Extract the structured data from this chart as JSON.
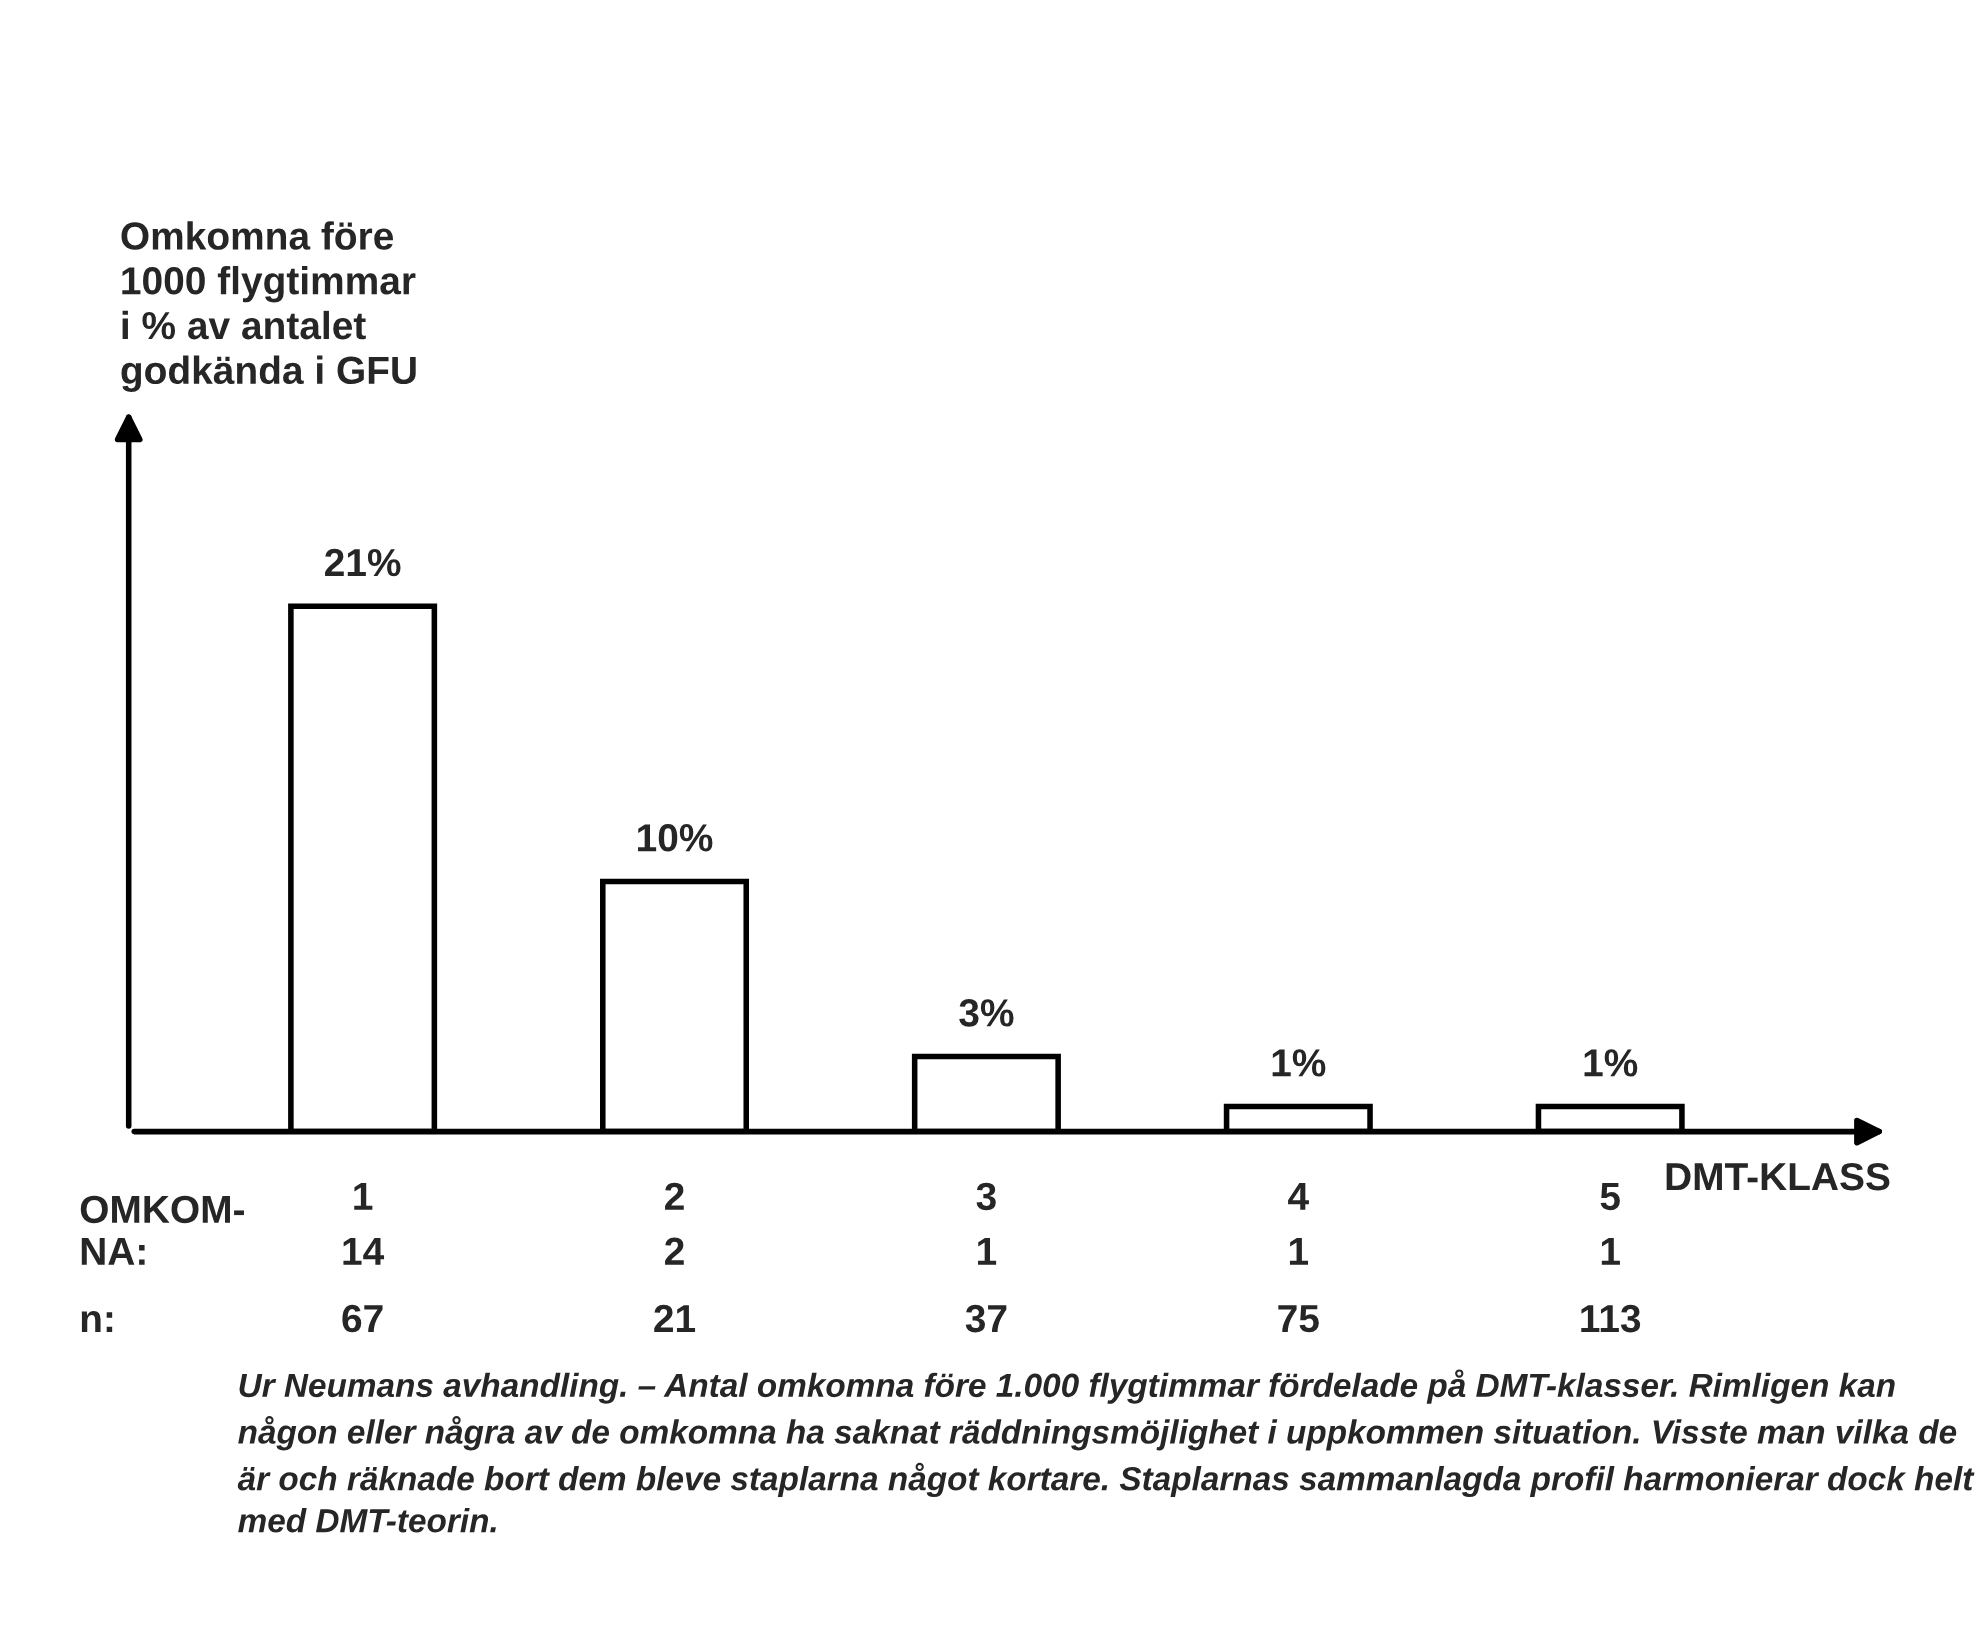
{
  "chart_data": {
    "type": "bar",
    "xlabel": "DMT-KLASS",
    "categories": [
      "1",
      "2",
      "3",
      "4",
      "5"
    ],
    "values": [
      21,
      10,
      3,
      1,
      1
    ],
    "value_labels": [
      "21%",
      "10%",
      "3%",
      "1%",
      "1%"
    ],
    "color": "#ffffff",
    "grid": false,
    "annotations": [
      "Omkomna före\n1000 flygtimmar\ni % av antalet\ngodkända i GFU",
      "OMKOM-\nNA:",
      "14",
      "2",
      "1",
      "1",
      "1",
      "n:",
      "67",
      "21",
      "37",
      "75",
      "113",
      "Ur Neumans avhandling. – Antal omkomna före 1.000 flygtimmar fördelade på DMT-klasser. Rimligen kan någon eller några av de omkomna ha saknat räddningsmöjlighet i uppkommen situation. Visste man vilka de är och räknade bort dem bleve staplarna något kortare. Staplarnas sammanlagda profil harmonierar dock helt med DMT-teorin."
    ]
  }
}
